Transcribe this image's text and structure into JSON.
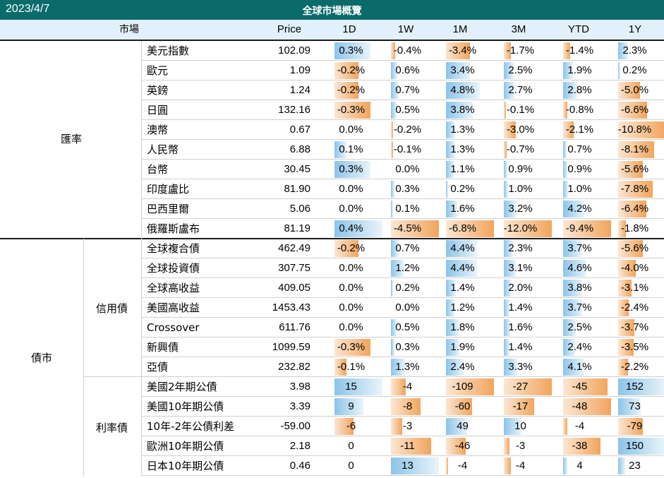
{
  "header": {
    "date": "2023/4/7",
    "title": "全球市場概覽"
  },
  "columns": {
    "market": "市場",
    "price": "Price",
    "d1": "1D",
    "w1": "1W",
    "m1": "1M",
    "m3": "3M",
    "ytd": "YTD",
    "y1": "1Y"
  },
  "groups": {
    "fx": "匯率",
    "bond": "債市",
    "credit": "信用債",
    "rates": "利率債"
  },
  "colors": {
    "title_bg": "#0b6b6b",
    "header_bg": "#e2f0fb",
    "positive_bar": "#8cc4e8",
    "negative_bar": "#f1a55d"
  },
  "rows": [
    {
      "group": "fx",
      "name": "美元指數",
      "price": "102.09",
      "vals": [
        "0.3%",
        "-0.4%",
        "-3.4%",
        "-1.7%",
        "-1.4%",
        "2.3%"
      ],
      "num": [
        0.3,
        -0.4,
        -3.4,
        -1.7,
        -1.4,
        2.3
      ]
    },
    {
      "group": "fx",
      "name": "歐元",
      "price": "1.09",
      "vals": [
        "-0.2%",
        "0.6%",
        "3.4%",
        "2.5%",
        "1.9%",
        "0.2%"
      ],
      "num": [
        -0.2,
        0.6,
        3.4,
        2.5,
        1.9,
        0.2
      ]
    },
    {
      "group": "fx",
      "name": "英鎊",
      "price": "1.24",
      "vals": [
        "-0.2%",
        "0.7%",
        "4.8%",
        "2.7%",
        "2.8%",
        "-5.0%"
      ],
      "num": [
        -0.2,
        0.7,
        4.8,
        2.7,
        2.8,
        -5.0
      ]
    },
    {
      "group": "fx",
      "name": "日圓",
      "price": "132.16",
      "vals": [
        "-0.3%",
        "0.5%",
        "3.8%",
        "-0.1%",
        "-0.8%",
        "-6.6%"
      ],
      "num": [
        -0.3,
        0.5,
        3.8,
        -0.1,
        -0.8,
        -6.6
      ]
    },
    {
      "group": "fx",
      "name": "澳幣",
      "price": "0.67",
      "vals": [
        "0.0%",
        "-0.2%",
        "1.3%",
        "-3.0%",
        "-2.1%",
        "-10.8%"
      ],
      "num": [
        0.0,
        -0.2,
        1.3,
        -3.0,
        -2.1,
        -10.8
      ]
    },
    {
      "group": "fx",
      "name": "人民幣",
      "price": "6.88",
      "vals": [
        "0.1%",
        "-0.1%",
        "1.3%",
        "-0.7%",
        "0.7%",
        "-8.1%"
      ],
      "num": [
        0.1,
        -0.1,
        1.3,
        -0.7,
        0.7,
        -8.1
      ]
    },
    {
      "group": "fx",
      "name": "台幣",
      "price": "30.45",
      "vals": [
        "0.3%",
        "0.0%",
        "1.1%",
        "0.9%",
        "0.9%",
        "-5.6%"
      ],
      "num": [
        0.3,
        0.0,
        1.1,
        0.9,
        0.9,
        -5.6
      ]
    },
    {
      "group": "fx",
      "name": "印度盧比",
      "price": "81.90",
      "vals": [
        "0.0%",
        "0.3%",
        "0.2%",
        "1.0%",
        "1.0%",
        "-7.8%"
      ],
      "num": [
        0.0,
        0.3,
        0.2,
        1.0,
        1.0,
        -7.8
      ]
    },
    {
      "group": "fx",
      "name": "巴西里爾",
      "price": "5.06",
      "vals": [
        "0.0%",
        "0.1%",
        "1.6%",
        "3.2%",
        "4.2%",
        "-6.4%"
      ],
      "num": [
        0.0,
        0.1,
        1.6,
        3.2,
        4.2,
        -6.4
      ]
    },
    {
      "group": "fx",
      "name": "俄羅斯盧布",
      "price": "81.19",
      "vals": [
        "0.4%",
        "-4.5%",
        "-6.8%",
        "-12.0%",
        "-9.4%",
        "-1.8%"
      ],
      "num": [
        0.4,
        -4.5,
        -6.8,
        -12.0,
        -9.4,
        -1.8
      ]
    },
    {
      "group": "credit",
      "name": "全球複合債",
      "price": "462.49",
      "vals": [
        "-0.2%",
        "0.7%",
        "4.4%",
        "2.3%",
        "3.7%",
        "-5.6%"
      ],
      "num": [
        -0.2,
        0.7,
        4.4,
        2.3,
        3.7,
        -5.6
      ]
    },
    {
      "group": "credit",
      "name": "全球投資債",
      "price": "307.75",
      "vals": [
        "0.0%",
        "1.2%",
        "4.4%",
        "3.1%",
        "4.6%",
        "-4.0%"
      ],
      "num": [
        0.0,
        1.2,
        4.4,
        3.1,
        4.6,
        -4.0
      ]
    },
    {
      "group": "credit",
      "name": "全球高收益",
      "price": "409.05",
      "vals": [
        "0.0%",
        "0.2%",
        "1.4%",
        "2.0%",
        "3.8%",
        "-3.1%"
      ],
      "num": [
        0.0,
        0.2,
        1.4,
        2.0,
        3.8,
        -3.1
      ]
    },
    {
      "group": "credit",
      "name": "美國高收益",
      "price": "1453.43",
      "vals": [
        "0.0%",
        "0.0%",
        "1.2%",
        "1.4%",
        "3.7%",
        "-2.4%"
      ],
      "num": [
        0.0,
        0.0,
        1.2,
        1.4,
        3.7,
        -2.4
      ]
    },
    {
      "group": "credit",
      "name": "Crossover",
      "price": "611.76",
      "vals": [
        "0.0%",
        "0.5%",
        "1.8%",
        "1.6%",
        "2.5%",
        "-3.7%"
      ],
      "num": [
        0.0,
        0.5,
        1.8,
        1.6,
        2.5,
        -3.7
      ]
    },
    {
      "group": "credit",
      "name": "新興債",
      "price": "1099.59",
      "vals": [
        "-0.3%",
        "0.3%",
        "1.9%",
        "1.4%",
        "2.4%",
        "-3.5%"
      ],
      "num": [
        -0.3,
        0.3,
        1.9,
        1.4,
        2.4,
        -3.5
      ]
    },
    {
      "group": "credit",
      "name": "亞債",
      "price": "232.82",
      "vals": [
        "-0.1%",
        "1.3%",
        "2.4%",
        "3.3%",
        "4.1%",
        "-2.2%"
      ],
      "num": [
        -0.1,
        1.3,
        2.4,
        3.3,
        4.1,
        -2.2
      ]
    },
    {
      "group": "rates",
      "name": "美國2年期公債",
      "price": "3.98",
      "vals": [
        "15",
        "-4",
        "-109",
        "-27",
        "-45",
        "152"
      ],
      "num": [
        15,
        -4,
        -109,
        -27,
        -45,
        152
      ]
    },
    {
      "group": "rates",
      "name": "美國10年期公債",
      "price": "3.39",
      "vals": [
        "9",
        "-8",
        "-60",
        "-17",
        "-48",
        "73"
      ],
      "num": [
        9,
        -8,
        -60,
        -17,
        -48,
        73
      ]
    },
    {
      "group": "rates",
      "name": "10年-2年公債利差",
      "price": "-59.00",
      "vals": [
        "-6",
        "-3",
        "49",
        "10",
        "-4",
        "-79"
      ],
      "num": [
        -6,
        -3,
        49,
        10,
        -4,
        -79
      ]
    },
    {
      "group": "rates",
      "name": "歐洲10年期公債",
      "price": "2.18",
      "vals": [
        "0",
        "-11",
        "-46",
        "-3",
        "-38",
        "150"
      ],
      "num": [
        0,
        -11,
        -46,
        -3,
        -38,
        150
      ]
    },
    {
      "group": "rates",
      "name": "日本10年期公債",
      "price": "0.46",
      "vals": [
        "0",
        "13",
        "-4",
        "-4",
        "4",
        "23"
      ],
      "num": [
        0,
        13,
        -4,
        -4,
        4,
        23
      ]
    }
  ]
}
